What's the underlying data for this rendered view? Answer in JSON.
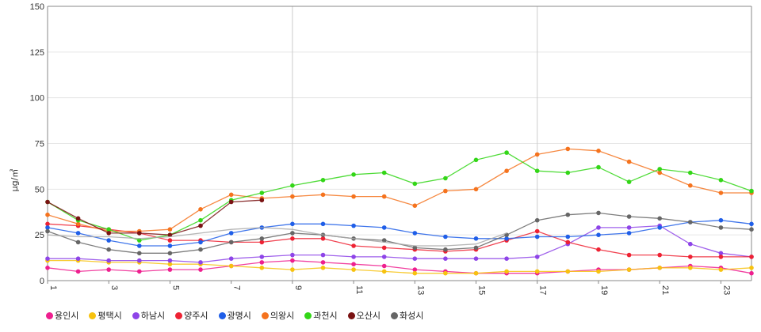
{
  "chart_data": {
    "type": "line",
    "title": "",
    "xlabel": "",
    "ylabel": "μg/㎥",
    "ylim": [
      0,
      150
    ],
    "yticks": [
      0,
      25,
      50,
      75,
      100,
      125,
      150
    ],
    "xlim": [
      1,
      24
    ],
    "xtick_labels": [
      "1",
      "3",
      "5",
      "7",
      "9",
      "11",
      "13",
      "15",
      "17",
      "19",
      "21",
      "23"
    ],
    "x": [
      1,
      2,
      3,
      4,
      5,
      6,
      7,
      8,
      9,
      10,
      11,
      12,
      13,
      14,
      15,
      16,
      17,
      18,
      19,
      20,
      21,
      22,
      23,
      24
    ],
    "series": [
      {
        "name": "용인시",
        "color": "#ee1f8f",
        "values": [
          7,
          5,
          6,
          5,
          6,
          6,
          8,
          10,
          11,
          10,
          9,
          8,
          6,
          5,
          4,
          4,
          4,
          5,
          6,
          6,
          7,
          8,
          7,
          4
        ]
      },
      {
        "name": "평택시",
        "color": "#f7c20f",
        "values": [
          11,
          11,
          10,
          10,
          9,
          9,
          8,
          7,
          6,
          7,
          6,
          5,
          4,
          4,
          4,
          5,
          5,
          5,
          5,
          6,
          7,
          7,
          6,
          7
        ]
      },
      {
        "name": "하남시",
        "color": "#8e44e8",
        "values": [
          12,
          12,
          11,
          11,
          11,
          10,
          12,
          13,
          14,
          14,
          13,
          13,
          12,
          12,
          12,
          12,
          13,
          20,
          29,
          29,
          30,
          20,
          15,
          13
        ]
      },
      {
        "name": "양주시",
        "color": "#ee2233",
        "values": [
          31,
          30,
          28,
          26,
          22,
          22,
          21,
          21,
          23,
          23,
          19,
          18,
          17,
          16,
          17,
          22,
          27,
          21,
          17,
          14,
          14,
          13,
          13,
          13
        ]
      },
      {
        "name": "광명시",
        "color": "#1f5ee8",
        "values": [
          29,
          26,
          22,
          19,
          19,
          21,
          26,
          29,
          31,
          31,
          30,
          29,
          26,
          24,
          23,
          23,
          24,
          24,
          25,
          26,
          29,
          32,
          33,
          31
        ]
      },
      {
        "name": "의왕시",
        "color": "#f5731e",
        "values": [
          36,
          31,
          27,
          27,
          28,
          39,
          47,
          45,
          46,
          47,
          46,
          46,
          41,
          49,
          50,
          60,
          69,
          72,
          71,
          65,
          59,
          52,
          48,
          48
        ]
      },
      {
        "name": "과천시",
        "color": "#33d617",
        "values": [
          43,
          33,
          28,
          22,
          25,
          33,
          44,
          48,
          52,
          55,
          58,
          59,
          53,
          56,
          66,
          70,
          60,
          59,
          62,
          54,
          61,
          59,
          55,
          49
        ]
      },
      {
        "name": "오산시",
        "color": "#7a1313",
        "values": [
          43,
          34,
          26,
          26,
          25,
          30,
          43,
          44,
          null,
          null,
          null,
          null,
          null,
          null,
          null,
          null,
          null,
          null,
          null,
          null,
          null,
          null,
          null,
          null
        ]
      },
      {
        "name": "화성시",
        "color": "#666666",
        "values": [
          27,
          21,
          17,
          15,
          15,
          17,
          21,
          23,
          26,
          25,
          23,
          22,
          18,
          17,
          18,
          25,
          33,
          36,
          37,
          35,
          34,
          32,
          29,
          28
        ]
      },
      {
        "name": "",
        "color": "#a8a8a8",
        "values": [
          25,
          24,
          24,
          23,
          24,
          26,
          28,
          29,
          28,
          25,
          23,
          21,
          19,
          19,
          20,
          26,
          null,
          null,
          null,
          null,
          null,
          null,
          null,
          null
        ],
        "markers": false
      }
    ]
  }
}
